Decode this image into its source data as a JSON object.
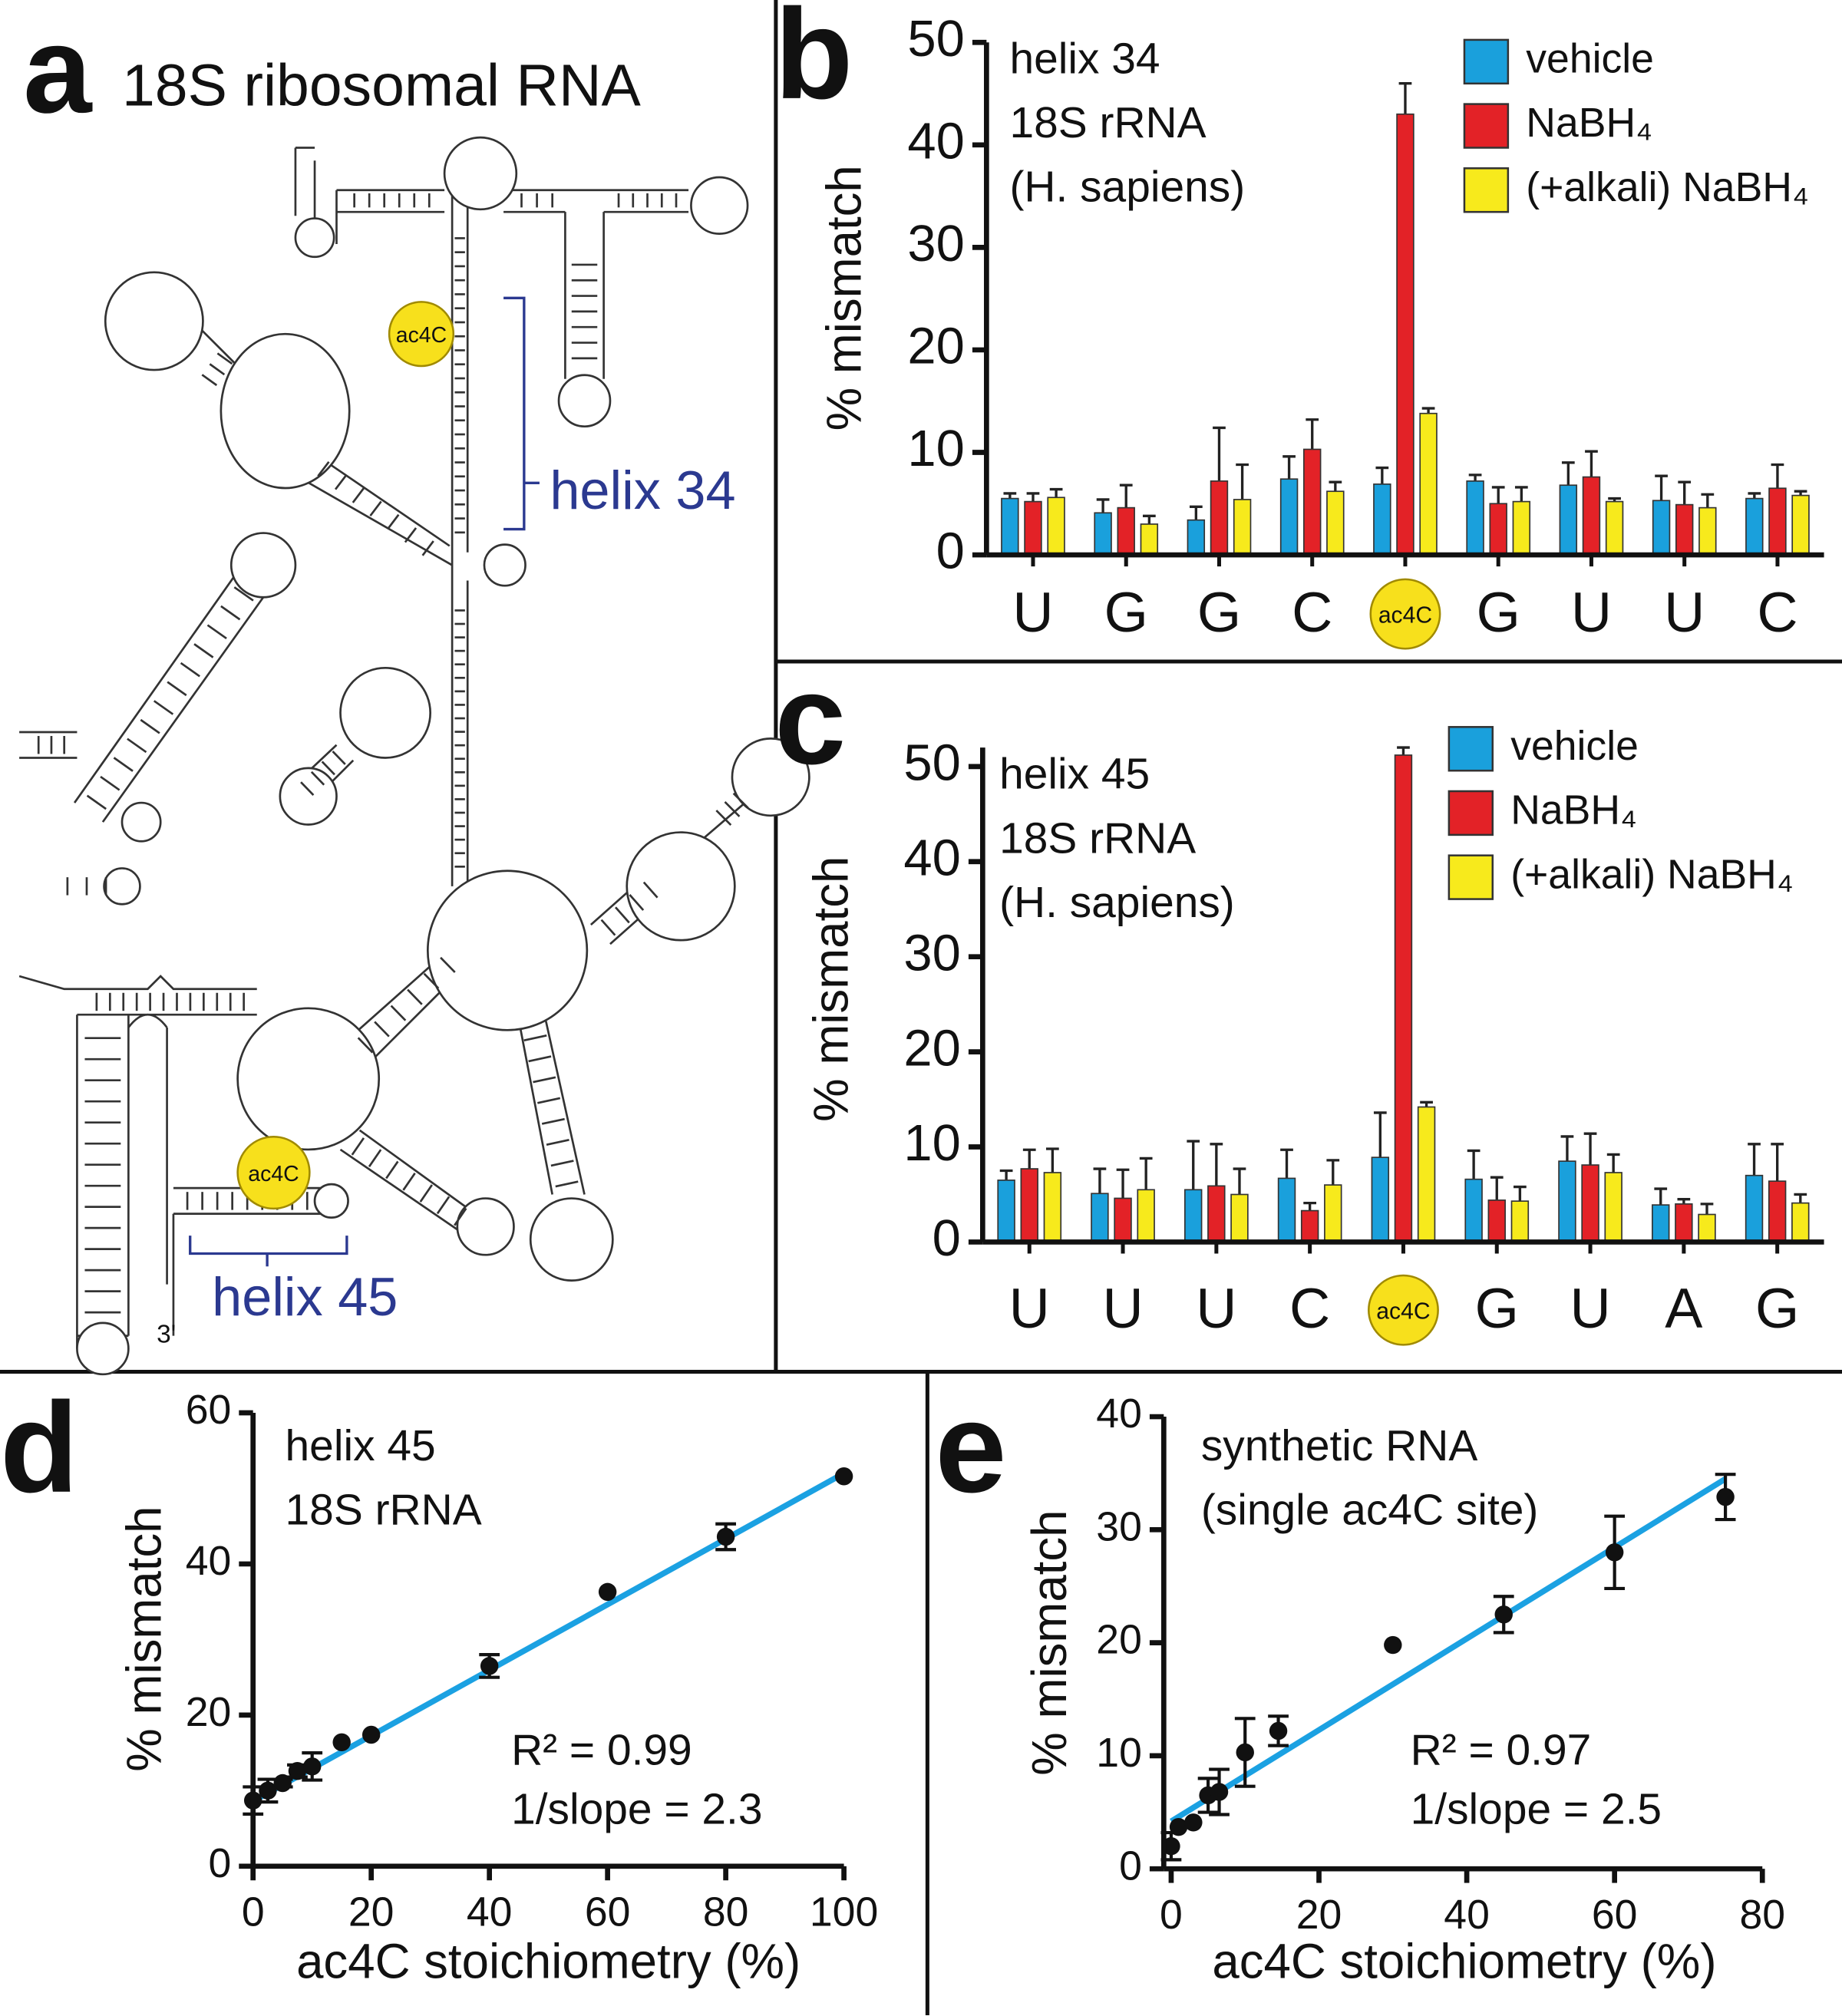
{
  "diagram": {
    "panel": "a",
    "title": "18S ribosomal RNA",
    "labels": [
      "ac4C",
      "ac4C",
      "helix 34",
      "helix 45",
      "3'"
    ]
  },
  "chart_data": [
    {
      "panel": "b",
      "type": "bar",
      "annotation": [
        "helix 34",
        "18S rRNA",
        "(H. sapiens)"
      ],
      "ylabel": "% mismatch",
      "categories": [
        "U",
        "G",
        "G",
        "C",
        "ac4C",
        "G",
        "U",
        "U",
        "C"
      ],
      "series": [
        {
          "name": "vehicle",
          "color": "#1aa0dc",
          "values": [
            5.5,
            4.1,
            3.4,
            7.4,
            6.9,
            7.2,
            6.8,
            5.3,
            5.5
          ],
          "errors": [
            0.5,
            1.3,
            1.3,
            2.2,
            1.6,
            0.6,
            2.2,
            2.4,
            0.5
          ]
        },
        {
          "name": "NaBH₄",
          "color": "#e32227",
          "values": [
            5.2,
            4.6,
            7.2,
            10.3,
            43,
            5.0,
            7.6,
            4.9,
            6.5
          ],
          "errors": [
            0.8,
            2.2,
            5.2,
            2.9,
            3,
            1.6,
            2.5,
            2.2,
            2.3
          ]
        },
        {
          "name": "(+alkali) NaBH₄",
          "color": "#f7ea1c",
          "values": [
            5.6,
            3.0,
            5.4,
            6.2,
            13.8,
            5.2,
            5.2,
            4.6,
            5.8
          ],
          "errors": [
            0.8,
            0.8,
            3.4,
            0.9,
            0.5,
            1.4,
            0.3,
            1.3,
            0.4
          ]
        }
      ],
      "ylim": [
        0,
        50
      ],
      "yticks": [
        0,
        10,
        20,
        30,
        40,
        50
      ]
    },
    {
      "panel": "c",
      "type": "bar",
      "annotation": [
        "helix 45",
        "18S rRNA",
        "(H. sapiens)"
      ],
      "ylabel": "% mismatch",
      "categories": [
        "U",
        "U",
        "U",
        "C",
        "ac4C",
        "G",
        "U",
        "A",
        "G"
      ],
      "series": [
        {
          "name": "vehicle",
          "color": "#1aa0dc",
          "values": [
            6.5,
            5.1,
            5.5,
            6.7,
            8.9,
            6.6,
            8.5,
            3.9,
            7.0
          ],
          "errors": [
            1,
            2.6,
            5.1,
            3,
            4.7,
            3,
            2.6,
            1.7,
            3.3
          ]
        },
        {
          "name": "NaBH₄",
          "color": "#e32227",
          "values": [
            7.7,
            4.6,
            5.9,
            3.3,
            51.2,
            4.4,
            8.1,
            4.0,
            6.4
          ],
          "errors": [
            2,
            3,
            4.4,
            0.8,
            0.8,
            2.4,
            3.3,
            0.5,
            3.9
          ]
        },
        {
          "name": "(+alkali) NaBH₄",
          "color": "#f7ea1c",
          "values": [
            7.3,
            5.5,
            5.0,
            6.0,
            14.2,
            4.3,
            7.3,
            2.9,
            4.1
          ],
          "errors": [
            2.5,
            3.3,
            2.7,
            2.6,
            0.5,
            1.5,
            1.9,
            1.1,
            0.9
          ]
        }
      ],
      "ylim": [
        0,
        52
      ],
      "yticks": [
        0,
        10,
        20,
        30,
        40,
        50
      ]
    },
    {
      "panel": "d",
      "type": "scatter",
      "annotation": [
        "helix 45",
        "18S rRNA"
      ],
      "stats": [
        "R² = 0.99",
        "1/slope = 2.3"
      ],
      "xlabel": "ac4C stoichiometry (%)",
      "ylabel": "% mismatch",
      "color": "#111111",
      "x": [
        0,
        2.5,
        5,
        7.5,
        10,
        15,
        20,
        40,
        60,
        80,
        100
      ],
      "values": [
        8.7,
        10,
        11,
        12.6,
        13.2,
        16.4,
        17.4,
        26.5,
        36.3,
        43.6,
        51.6
      ],
      "errors": [
        1.8,
        1.5,
        0.5,
        0.8,
        1.8,
        0,
        0,
        1.5,
        0,
        1.7,
        0
      ],
      "fit": {
        "color": "#1ba1e2",
        "x": [
          0,
          100
        ],
        "values": [
          8.6,
          52
        ]
      },
      "xlim": [
        0,
        100
      ],
      "ylim": [
        0,
        60
      ],
      "xticks": [
        0,
        20,
        40,
        60,
        80,
        100
      ],
      "yticks": [
        0,
        20,
        40,
        60
      ]
    },
    {
      "panel": "e",
      "type": "scatter",
      "annotation": [
        "synthetic RNA",
        "(single ac4C site)"
      ],
      "stats": [
        "R² = 0.97",
        "1/slope = 2.5"
      ],
      "xlabel": "ac4C stoichiometry (%)",
      "ylabel": "% mismatch",
      "color": "#111111",
      "x": [
        0,
        1,
        3,
        5,
        6.5,
        10,
        14.5,
        30,
        45,
        60,
        75
      ],
      "values": [
        2,
        3.7,
        4.1,
        6.5,
        6.8,
        10.3,
        12.2,
        19.8,
        22.5,
        28,
        32.9
      ],
      "errors": [
        1.2,
        0,
        0,
        1.5,
        2,
        3,
        1.3,
        0,
        1.6,
        3.2,
        2
      ],
      "fit": {
        "color": "#1ba1e2",
        "x": [
          0,
          75
        ],
        "values": [
          4.2,
          34.5
        ]
      },
      "xlim": [
        -1,
        80
      ],
      "ylim": [
        0,
        40
      ],
      "xticks": [
        0,
        20,
        40,
        60,
        80
      ],
      "yticks": [
        0,
        10,
        20,
        30,
        40
      ]
    }
  ]
}
